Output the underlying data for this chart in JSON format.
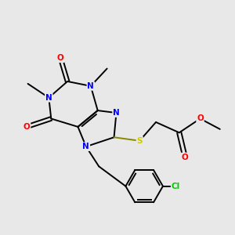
{
  "bg_color": "#e8e8e8",
  "atom_colors": {
    "N": "#0000ff",
    "O": "#ff0000",
    "S": "#cccc00",
    "C": "#000000",
    "Cl": "#00cc00"
  },
  "bond_color": "#000000"
}
